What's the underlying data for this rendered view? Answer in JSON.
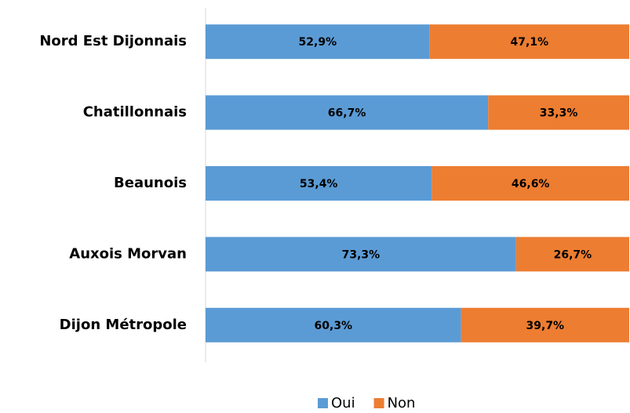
{
  "chart_data": {
    "type": "stacked_bar_horizontal",
    "categories": [
      "Nord Est Dijonnais",
      "Chatillonnais",
      "Beaunois",
      "Auxois Morvan",
      "Dijon Métropole"
    ],
    "series": [
      {
        "name": "Oui",
        "color": "#5b9bd5",
        "values": [
          52.9,
          66.7,
          53.4,
          73.3,
          60.3
        ],
        "value_labels": [
          "52,9%",
          "66,7%",
          "53,4%",
          "73,3%",
          "60,3%"
        ]
      },
      {
        "name": "Non",
        "color": "#ed7d31",
        "values": [
          47.1,
          33.3,
          46.6,
          26.7,
          39.7
        ],
        "value_labels": [
          "47,1%",
          "33,3%",
          "46,6%",
          "26,7%",
          "39,7%"
        ]
      }
    ],
    "xlim": [
      0,
      100
    ],
    "legend": "bottom"
  }
}
